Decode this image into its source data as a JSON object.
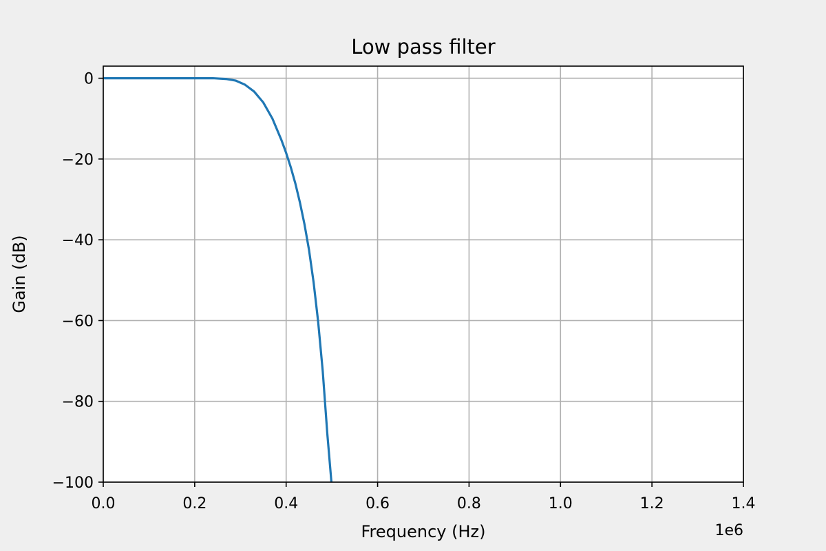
{
  "chart_data": {
    "type": "line",
    "title": "Low pass filter",
    "xlabel": "Frequency (Hz)",
    "ylabel": "Gain (dB)",
    "x_offset_label": "1e6",
    "xlim": [
      0,
      1.4
    ],
    "ylim": [
      -100,
      3
    ],
    "x_ticks": [
      0.0,
      0.2,
      0.4,
      0.6,
      0.8,
      1.0,
      1.2,
      1.4
    ],
    "x_tick_labels": [
      "0.0",
      "0.2",
      "0.4",
      "0.6",
      "0.8",
      "1.0",
      "1.2",
      "1.4"
    ],
    "y_ticks": [
      0,
      -20,
      -40,
      -60,
      -80,
      -100
    ],
    "y_tick_labels": [
      "0",
      "−20",
      "−40",
      "−60",
      "−80",
      "−100"
    ],
    "grid": true,
    "colors": {
      "line": "#1f77b4",
      "grid": "#b0b0b0",
      "background": "#efefef",
      "plot_background": "#ffffff"
    },
    "series": [
      {
        "x": [
          0.0,
          0.05,
          0.1,
          0.15,
          0.2,
          0.24,
          0.27,
          0.29,
          0.31,
          0.33,
          0.35,
          0.37,
          0.39,
          0.4,
          0.41,
          0.42,
          0.43,
          0.44,
          0.45,
          0.46,
          0.47,
          0.48,
          0.49,
          0.499
        ],
        "values": [
          0,
          0,
          0,
          0,
          0,
          0,
          -0.2,
          -0.6,
          -1.6,
          -3.3,
          -6,
          -10,
          -15.4,
          -18.5,
          -22,
          -26,
          -30.7,
          -36.1,
          -42.5,
          -50.5,
          -60.3,
          -72.5,
          -88,
          -100
        ]
      }
    ]
  }
}
